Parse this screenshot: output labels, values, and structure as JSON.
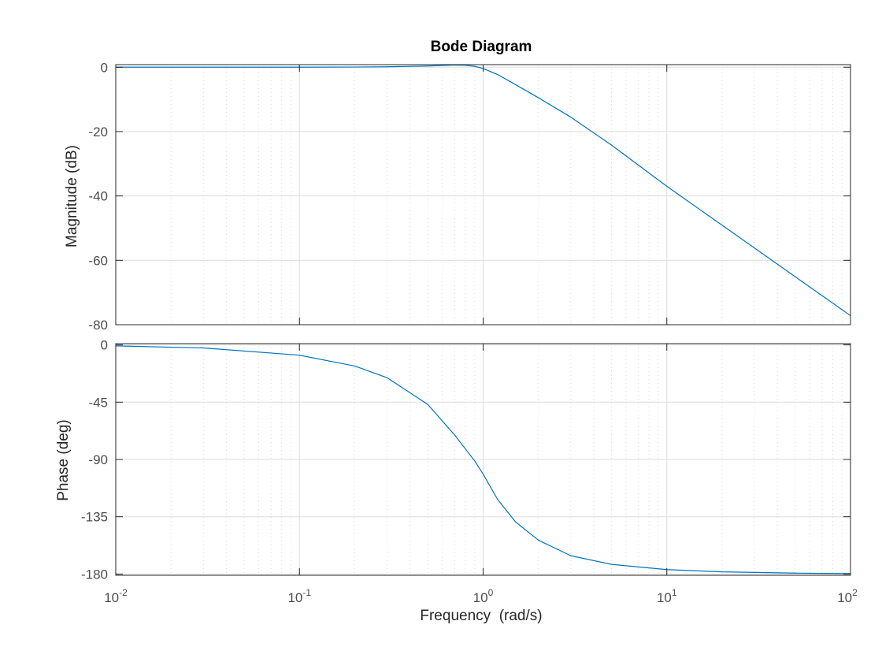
{
  "chart_data": {
    "type": "line",
    "title": "Bode Diagram",
    "xlabel": "Frequency  (rad/s)",
    "x_scale": "log",
    "xlim": [
      0.01,
      100
    ],
    "x_ticks": [
      {
        "base": "10",
        "exp": "-2"
      },
      {
        "base": "10",
        "exp": "-1"
      },
      {
        "base": "10",
        "exp": "0"
      },
      {
        "base": "10",
        "exp": "1"
      },
      {
        "base": "10",
        "exp": "2"
      }
    ],
    "grid": true,
    "line_color": "#0072bd",
    "panels": [
      {
        "ylabel": "Magnitude (dB)",
        "ylim": [
          -80,
          0.8
        ],
        "yticks": [
          "0",
          "-20",
          "-40",
          "-60",
          "-80"
        ],
        "ytick_values": [
          0,
          -20,
          -40,
          -60,
          -80
        ],
        "x": [
          0.01,
          0.03,
          0.1,
          0.2,
          0.3,
          0.5,
          0.6,
          0.7,
          0.8,
          0.9,
          1.0,
          1.2,
          1.5,
          2,
          3,
          5,
          10,
          20,
          50,
          100
        ],
        "y": [
          0.0,
          0.0,
          0.01,
          0.05,
          0.13,
          0.38,
          0.54,
          0.66,
          0.6,
          0.28,
          -0.4,
          -2.3,
          -5.4,
          -9.5,
          -15.5,
          -24.2,
          -37.0,
          -49.1,
          -65.1,
          -77.2
        ]
      },
      {
        "ylabel": "Phase (deg)",
        "ylim": [
          -181,
          1
        ],
        "yticks": [
          "0",
          "-45",
          "-90",
          "-135",
          "-180"
        ],
        "ytick_values": [
          0,
          -45,
          -90,
          -135,
          -180
        ],
        "x": [
          0.01,
          0.03,
          0.1,
          0.2,
          0.3,
          0.5,
          0.7,
          0.9,
          1.0,
          1.2,
          1.5,
          2,
          3,
          5,
          10,
          20,
          50,
          100
        ],
        "y": [
          -0.8,
          -2.4,
          -8.1,
          -16.6,
          -25.8,
          -46.8,
          -70.8,
          -91.2,
          -101.5,
          -121.5,
          -139.0,
          -153.4,
          -165.6,
          -172.4,
          -176.5,
          -178.3,
          -179.3,
          -179.7
        ]
      }
    ]
  }
}
